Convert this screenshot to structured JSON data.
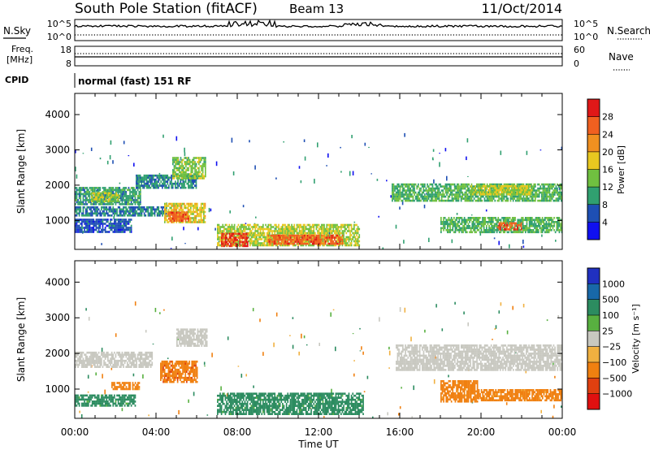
{
  "header": {
    "station": "South Pole Station (fitACF)",
    "beam": "Beam 13",
    "date": "11/Oct/2014"
  },
  "noise_panel": {
    "left_label": "N.Sky",
    "left_ticks": [
      "10^5",
      "10^0"
    ],
    "right_label": "N.Search",
    "right_ticks": [
      "10^5",
      "10^0"
    ]
  },
  "freq_panel": {
    "left_label_1": "Freq.",
    "left_label_2": "[MHz]",
    "left_ticks": [
      "18",
      "8"
    ],
    "right_label": "Nave",
    "right_ticks": [
      "60",
      "0"
    ]
  },
  "cpid": {
    "label": "CPID",
    "mode": "normal (fast) 151 RF"
  },
  "x_axis": {
    "label": "Time UT",
    "ticks": [
      "00:00",
      "04:00",
      "08:00",
      "12:00",
      "16:00",
      "20:00",
      "00:00"
    ]
  },
  "chart_data": [
    {
      "type": "heatmap",
      "xlabel": "Time UT",
      "ylabel": "Slant Range [km]",
      "xlim": [
        0,
        24
      ],
      "ylim": [
        180,
        4600
      ],
      "yticks": [
        1000,
        2000,
        3000,
        4000
      ],
      "colorbar": {
        "label": "Power [dB]",
        "ticks": [
          4,
          8,
          12,
          16,
          20,
          24,
          28
        ],
        "range": [
          0,
          32
        ],
        "colors": [
          "#1010f0",
          "#1e4fb4",
          "#30a070",
          "#70c040",
          "#e8c820",
          "#f09020",
          "#f06020",
          "#e01818"
        ]
      },
      "echo_regions": [
        {
          "t_start": 0.0,
          "t_end": 3.2,
          "range_start": 1450,
          "range_end": 1950,
          "value": 10
        },
        {
          "t_start": 0.8,
          "t_end": 2.2,
          "range_start": 1550,
          "range_end": 1800,
          "value": 16
        },
        {
          "t_start": 0.0,
          "t_end": 4.5,
          "range_start": 1150,
          "range_end": 1400,
          "value": 8
        },
        {
          "t_start": 0.0,
          "t_end": 2.8,
          "range_start": 700,
          "range_end": 1050,
          "value": 6
        },
        {
          "t_start": 3.0,
          "t_end": 6.0,
          "range_start": 1900,
          "range_end": 2300,
          "value": 9
        },
        {
          "t_start": 4.8,
          "t_end": 6.4,
          "range_start": 2200,
          "range_end": 2800,
          "value": 14
        },
        {
          "t_start": 4.4,
          "t_end": 6.4,
          "range_start": 950,
          "range_end": 1500,
          "value": 18
        },
        {
          "t_start": 4.6,
          "t_end": 5.6,
          "range_start": 1000,
          "range_end": 1250,
          "value": 26
        },
        {
          "t_start": 7.0,
          "t_end": 14.0,
          "range_start": 300,
          "range_end": 900,
          "value": 16
        },
        {
          "t_start": 7.2,
          "t_end": 8.5,
          "range_start": 300,
          "range_end": 650,
          "value": 28
        },
        {
          "t_start": 9.5,
          "t_end": 13.2,
          "range_start": 350,
          "range_end": 600,
          "value": 26
        },
        {
          "t_start": 15.6,
          "t_end": 24.0,
          "range_start": 1550,
          "range_end": 2050,
          "value": 12
        },
        {
          "t_start": 19.5,
          "t_end": 22.5,
          "range_start": 1750,
          "range_end": 2000,
          "value": 16
        },
        {
          "t_start": 18.0,
          "t_end": 24.0,
          "range_start": 650,
          "range_end": 1100,
          "value": 12
        },
        {
          "t_start": 20.8,
          "t_end": 22.0,
          "range_start": 750,
          "range_end": 950,
          "value": 26
        }
      ]
    },
    {
      "type": "heatmap",
      "xlabel": "Time UT",
      "ylabel": "Slant Range [km]",
      "xlim": [
        0,
        24
      ],
      "ylim": [
        180,
        4600
      ],
      "yticks": [
        1000,
        2000,
        3000,
        4000
      ],
      "colorbar": {
        "label": "Velocity [m s⁻¹]",
        "ticks": [
          "1000",
          "500",
          "100",
          "25",
          "−25",
          "−100",
          "−500",
          "−1000"
        ],
        "colors": [
          "#2030c0",
          "#1868a8",
          "#2c8c60",
          "#58b040",
          "#c8c8c0",
          "#f0b040",
          "#f08010",
          "#e04010",
          "#e01010"
        ]
      },
      "echo_regions": [
        {
          "t_start": 0.0,
          "t_end": 3.8,
          "range_start": 1650,
          "range_end": 2050,
          "value": 0
        },
        {
          "t_start": 0.0,
          "t_end": 3.0,
          "range_start": 550,
          "range_end": 850,
          "value": 150
        },
        {
          "t_start": 1.8,
          "t_end": 3.2,
          "range_start": 1000,
          "range_end": 1200,
          "value": -150
        },
        {
          "t_start": 4.2,
          "t_end": 6.0,
          "range_start": 1200,
          "range_end": 1800,
          "value": -400
        },
        {
          "t_start": 5.0,
          "t_end": 6.5,
          "range_start": 2200,
          "range_end": 2700,
          "value": 0
        },
        {
          "t_start": 7.0,
          "t_end": 14.2,
          "range_start": 300,
          "range_end": 900,
          "value": 150
        },
        {
          "t_start": 15.8,
          "t_end": 24.0,
          "range_start": 1550,
          "range_end": 2250,
          "value": 0
        },
        {
          "t_start": 18.0,
          "t_end": 19.8,
          "range_start": 650,
          "range_end": 1250,
          "value": -150
        },
        {
          "t_start": 19.8,
          "t_end": 24.0,
          "range_start": 700,
          "range_end": 1000,
          "value": -150
        }
      ]
    }
  ]
}
